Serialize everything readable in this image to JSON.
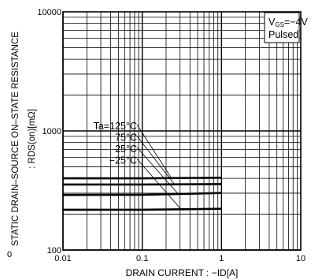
{
  "chart_data": {
    "type": "line",
    "title": "",
    "xlabel": "DRAIN CURRENT : −ID[A]",
    "ylabel_line1": "STATIC DRAIN–SOURCE ON–STATE RESISTANCE",
    "ylabel_line2": ": RDS(on)[mΩ]",
    "x_scale": "log",
    "y_scale": "log",
    "xlim": [
      0.01,
      10
    ],
    "ylim": [
      100,
      10000
    ],
    "grid": true,
    "x_ticks": [
      {
        "value": 0.01,
        "label": "0.01"
      },
      {
        "value": 0.1,
        "label": "0.1"
      },
      {
        "value": 1,
        "label": "1"
      },
      {
        "value": 10,
        "label": "10"
      }
    ],
    "y_ticks": [
      {
        "value": 100,
        "label": "100"
      },
      {
        "value": 1000,
        "label": "1000"
      },
      {
        "value": 10000,
        "label": "10000"
      }
    ],
    "conditions_box": {
      "line1_main": "V",
      "line1_sub": "GS",
      "line1_rest": "=−4V",
      "line2": "Pulsed"
    },
    "series": [
      {
        "name": "Ta=125°C",
        "x": [
          0.01,
          0.1,
          1
        ],
        "y": [
          400,
          400,
          405
        ]
      },
      {
        "name": "75°C",
        "x": [
          0.01,
          0.1,
          1
        ],
        "y": [
          355,
          355,
          358
        ]
      },
      {
        "name": "25°C",
        "x": [
          0.01,
          0.1,
          1
        ],
        "y": [
          290,
          291,
          301
        ]
      },
      {
        "name": "−25°C",
        "x": [
          0.01,
          0.1,
          1
        ],
        "y": [
          218,
          218,
          222
        ]
      }
    ],
    "axis_corner_label": "0"
  }
}
